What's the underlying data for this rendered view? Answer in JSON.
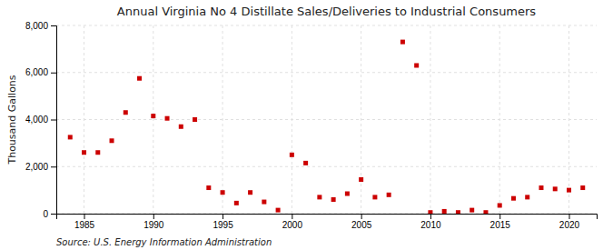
{
  "chart_data": {
    "type": "scatter",
    "title": "Annual Virginia No 4 Distillate Sales/Deliveries to Industrial Consumers",
    "y_label": "Thousand Gallons",
    "source": "Source: U.S. Energy Information Administration",
    "x": [
      1984,
      1985,
      1986,
      1987,
      1988,
      1989,
      1990,
      1991,
      1992,
      1993,
      1994,
      1995,
      1996,
      1997,
      1998,
      1999,
      2000,
      2001,
      2002,
      2003,
      2004,
      2005,
      2006,
      2007,
      2008,
      2009,
      2010,
      2011,
      2012,
      2013,
      2014,
      2015,
      2016,
      2017,
      2018,
      2019,
      2020,
      2021
    ],
    "values": [
      3250,
      2600,
      2600,
      3100,
      4300,
      5750,
      4150,
      4050,
      3700,
      4000,
      1100,
      900,
      450,
      900,
      500,
      150,
      2500,
      2150,
      700,
      600,
      850,
      1450,
      700,
      800,
      7300,
      6300,
      50,
      100,
      50,
      150,
      50,
      350,
      650,
      700,
      1100,
      1050,
      1000,
      1100
    ],
    "color": "#cc0000",
    "marker": "square",
    "xlim": [
      1983,
      2022
    ],
    "xticks": [
      1985,
      1990,
      1995,
      2000,
      2005,
      2010,
      2015,
      2020
    ],
    "ylim": [
      0,
      8000
    ],
    "yticks": [
      0,
      {
        "value": 2000,
        "label": "2,000"
      },
      {
        "value": 4000,
        "label": "4,000"
      },
      {
        "value": 6000,
        "label": "6,000"
      },
      {
        "value": 8000,
        "label": "8,000"
      }
    ],
    "grid": true
  }
}
